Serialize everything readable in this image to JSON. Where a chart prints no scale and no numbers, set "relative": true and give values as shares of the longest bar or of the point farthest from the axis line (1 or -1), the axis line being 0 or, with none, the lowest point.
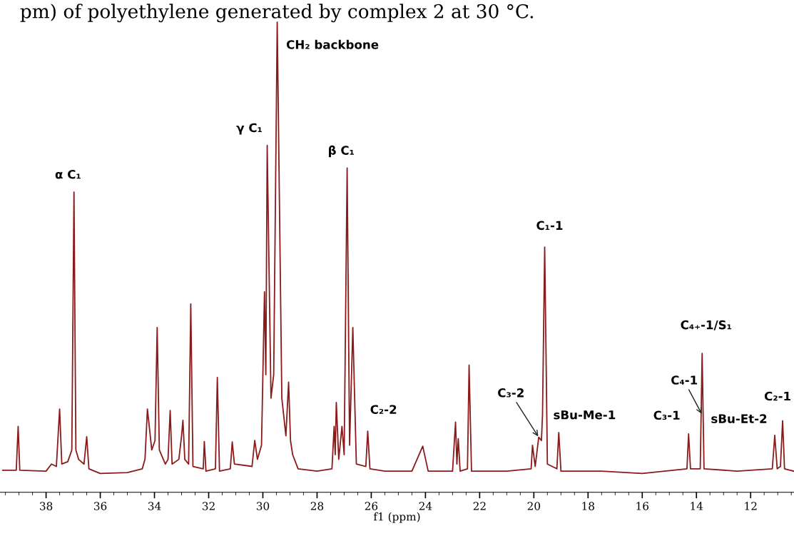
{
  "chart_data": {
    "type": "line",
    "relative": true,
    "title": "pm) of polyethylene generated by complex 2 at 30 °C.",
    "xlabel": "f1 (ppm)",
    "xlim": [
      39.7,
      10.4
    ],
    "xticks": [
      38,
      36,
      34,
      32,
      30,
      28,
      26,
      24,
      22,
      20,
      18,
      16,
      14,
      12,
      {
        "value": 39.5,
        "label": null
      },
      {
        "value": 39,
        "label": null
      },
      {
        "value": 38.5,
        "label": null
      },
      {
        "value": 37.5,
        "label": null
      },
      {
        "value": 37,
        "label": null
      },
      {
        "value": 36.5,
        "label": null
      },
      {
        "value": 35.5,
        "label": null
      },
      {
        "value": 35,
        "label": null
      },
      {
        "value": 34.5,
        "label": null
      },
      {
        "value": 33.5,
        "label": null
      },
      {
        "value": 33,
        "label": null
      },
      {
        "value": 32.5,
        "label": null
      },
      {
        "value": 31.5,
        "label": null
      },
      {
        "value": 31,
        "label": null
      },
      {
        "value": 30.5,
        "label": null
      },
      {
        "value": 29.5,
        "label": null
      },
      {
        "value": 29,
        "label": null
      },
      {
        "value": 28.5,
        "label": null
      },
      {
        "value": 27.5,
        "label": null
      },
      {
        "value": 27,
        "label": null
      },
      {
        "value": 26.5,
        "label": null
      },
      {
        "value": 25.5,
        "label": null
      },
      {
        "value": 25,
        "label": null
      },
      {
        "value": 24.5,
        "label": null
      },
      {
        "value": 23.5,
        "label": null
      },
      {
        "value": 23,
        "label": null
      },
      {
        "value": 22.5,
        "label": null
      },
      {
        "value": 21.5,
        "label": null
      },
      {
        "value": 21,
        "label": null
      },
      {
        "value": 20.5,
        "label": null
      },
      {
        "value": 19.5,
        "label": null
      },
      {
        "value": 19,
        "label": null
      },
      {
        "value": 18.5,
        "label": null
      },
      {
        "value": 17.5,
        "label": null
      },
      {
        "value": 17,
        "label": null
      },
      {
        "value": 16.5,
        "label": null
      },
      {
        "value": 15.5,
        "label": null
      },
      {
        "value": 15,
        "label": null
      },
      {
        "value": 14.5,
        "label": null
      },
      {
        "value": 13.5,
        "label": null
      },
      {
        "value": 13,
        "label": null
      },
      {
        "value": 12.5,
        "label": null
      },
      {
        "value": 11.5,
        "label": null
      },
      {
        "value": 11,
        "label": null
      },
      {
        "value": 10.5,
        "label": null
      }
    ],
    "series": [
      {
        "color": "#8b1a1a",
        "x": [
          39.6,
          39.1,
          39.03,
          38.97,
          38.0,
          37.8,
          37.62,
          37.5,
          37.42,
          37.2,
          37.05,
          36.97,
          36.9,
          36.8,
          36.6,
          36.5,
          36.42,
          36.0,
          35.0,
          34.45,
          34.35,
          34.26,
          34.1,
          33.98,
          33.9,
          33.82,
          33.6,
          33.5,
          33.42,
          33.35,
          33.1,
          33.0,
          32.95,
          32.88,
          32.74,
          32.66,
          32.58,
          32.2,
          32.16,
          32.1,
          31.75,
          31.68,
          31.6,
          31.2,
          31.13,
          31.05,
          30.4,
          30.3,
          30.2,
          30.05,
          29.94,
          29.89,
          29.84,
          29.7,
          29.6,
          29.47,
          29.3,
          29.15,
          29.05,
          28.98,
          28.9,
          28.7,
          28.0,
          27.45,
          27.37,
          27.33,
          27.29,
          27.2,
          27.08,
          27.0,
          26.89,
          26.8,
          26.68,
          26.55,
          26.2,
          26.13,
          26.05,
          25.5,
          24.5,
          24.1,
          23.9,
          23.0,
          22.89,
          22.84,
          22.79,
          22.72,
          22.45,
          22.39,
          22.3,
          21.0,
          20.1,
          20.05,
          19.95,
          19.82,
          19.72,
          19.68,
          19.6,
          19.5,
          19.15,
          19.08,
          19.0,
          17.5,
          16.0,
          14.35,
          14.29,
          14.22,
          13.86,
          13.79,
          13.72,
          12.5,
          11.2,
          11.11,
          11.02,
          10.9,
          10.82,
          10.75,
          10.42
        ],
        "values": [
          0.047,
          0.047,
          0.14,
          0.047,
          0.045,
          0.06,
          0.055,
          0.177,
          0.06,
          0.065,
          0.09,
          0.638,
          0.09,
          0.07,
          0.06,
          0.118,
          0.05,
          0.04,
          0.042,
          0.05,
          0.07,
          0.177,
          0.09,
          0.11,
          0.35,
          0.09,
          0.06,
          0.07,
          0.174,
          0.06,
          0.07,
          0.12,
          0.153,
          0.07,
          0.06,
          0.4,
          0.055,
          0.05,
          0.108,
          0.045,
          0.05,
          0.244,
          0.045,
          0.05,
          0.107,
          0.06,
          0.055,
          0.11,
          0.07,
          0.1,
          0.426,
          0.25,
          0.737,
          0.2,
          0.25,
          1.0,
          0.2,
          0.12,
          0.234,
          0.11,
          0.08,
          0.05,
          0.045,
          0.05,
          0.14,
          0.08,
          0.191,
          0.07,
          0.14,
          0.08,
          0.689,
          0.1,
          0.35,
          0.06,
          0.055,
          0.13,
          0.05,
          0.045,
          0.045,
          0.098,
          0.045,
          0.045,
          0.149,
          0.06,
          0.114,
          0.045,
          0.05,
          0.27,
          0.045,
          0.045,
          0.05,
          0.1,
          0.055,
          0.117,
          0.11,
          0.165,
          0.521,
          0.06,
          0.05,
          0.127,
          0.045,
          0.045,
          0.04,
          0.05,
          0.124,
          0.05,
          0.05,
          0.295,
          0.05,
          0.045,
          0.05,
          0.121,
          0.05,
          0.055,
          0.152,
          0.05,
          0.045
        ]
      }
    ],
    "annotations": [
      {
        "text": "α C₁",
        "x": 36.97,
        "y": 0.638
      },
      {
        "text": "CH₂ backbone",
        "x": 29.47,
        "y": 1.0
      },
      {
        "text": "γ C₁",
        "x": 29.84,
        "y": 0.737
      },
      {
        "text": "β C₁",
        "x": 26.89,
        "y": 0.689
      },
      {
        "text": "C₂-2",
        "x": 26.13,
        "y": 0.13
      },
      {
        "text": "C₃-2",
        "x": 19.82,
        "y": 0.117
      },
      {
        "text": "sBu-Me-1",
        "x": 19.08,
        "y": 0.127
      },
      {
        "text": "C₁-1",
        "x": 19.6,
        "y": 0.521
      },
      {
        "text": "C₃-1",
        "x": 14.29,
        "y": 0.124
      },
      {
        "text": "C₄-1",
        "x": 13.79,
        "y": 0.165
      },
      {
        "text": "C₄₊-1/S₁",
        "x": 13.79,
        "y": 0.295
      },
      {
        "text": "sBu-Et-2",
        "x": 11.11,
        "y": 0.121
      },
      {
        "text": "C₂-1",
        "x": 10.82,
        "y": 0.152
      }
    ]
  }
}
